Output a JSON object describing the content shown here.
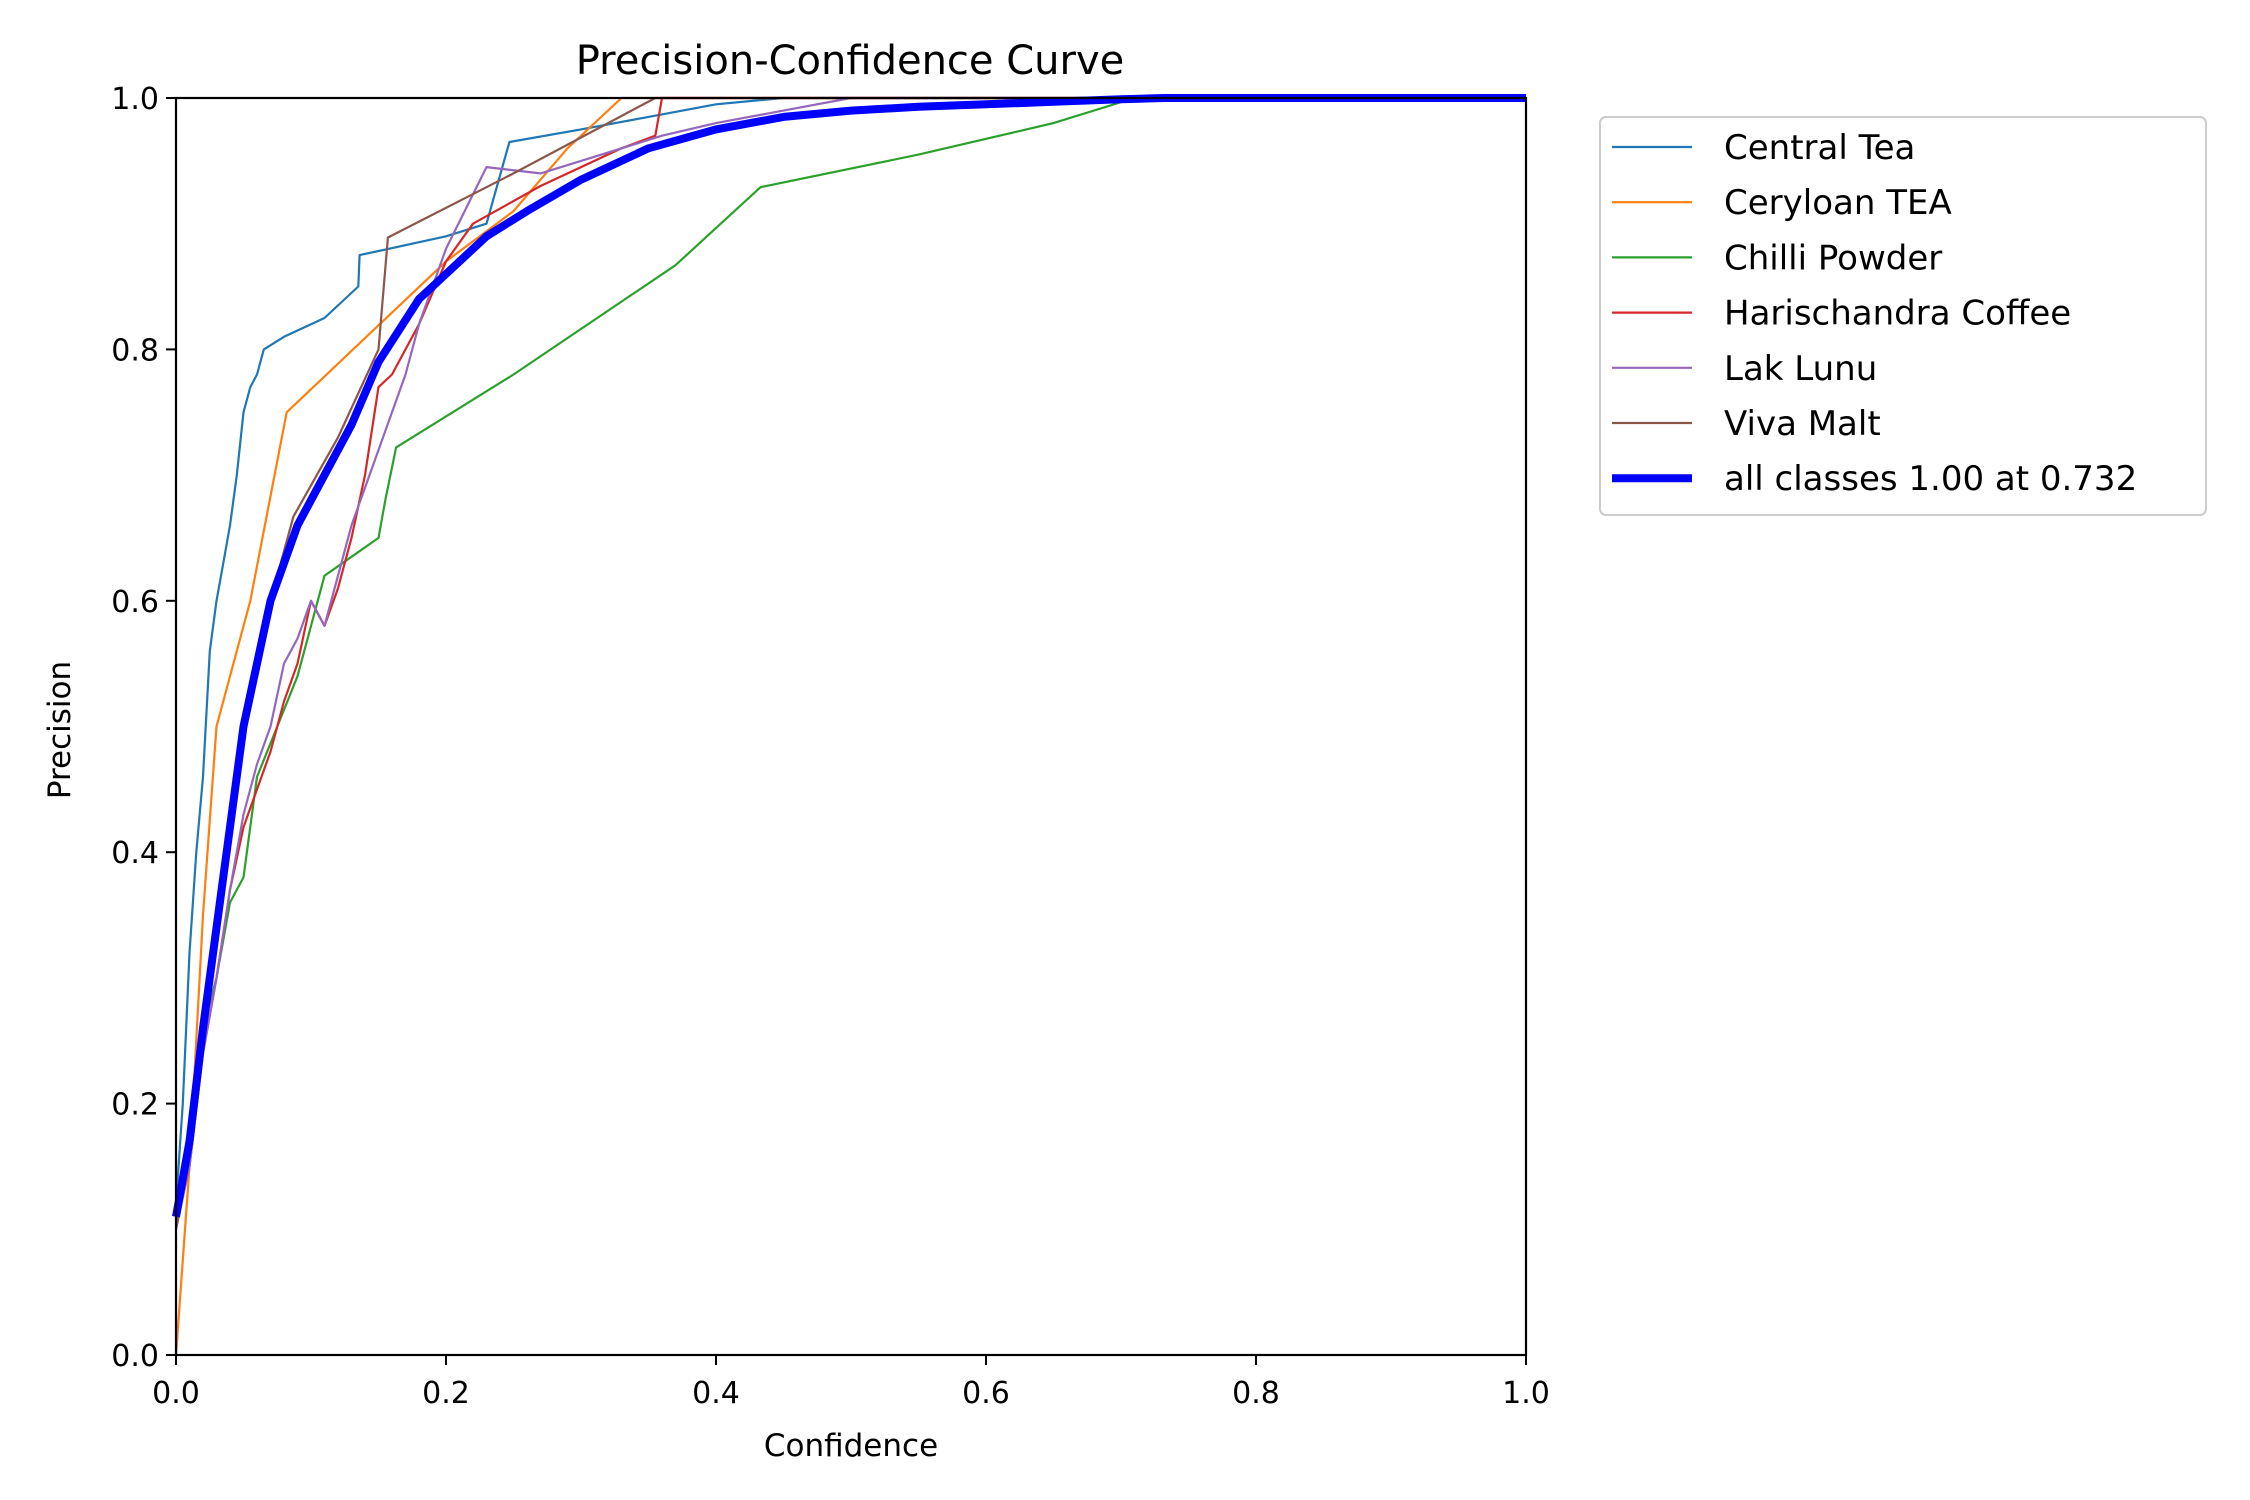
{
  "chart_data": {
    "type": "line",
    "title": "Precision-Confidence Curve",
    "xlabel": "Confidence",
    "ylabel": "Precision",
    "xlim": [
      0,
      1
    ],
    "ylim": [
      0,
      1
    ],
    "xticks": [
      0.0,
      0.2,
      0.4,
      0.6,
      0.8,
      1.0
    ],
    "yticks": [
      0.0,
      0.2,
      0.4,
      0.6,
      0.8,
      1.0
    ],
    "xtick_labels": [
      "0.0",
      "0.2",
      "0.4",
      "0.6",
      "0.8",
      "1.0"
    ],
    "ytick_labels": [
      "0.0",
      "0.2",
      "0.4",
      "0.6",
      "0.8",
      "1.0"
    ],
    "grid": false,
    "legend": "outside-right",
    "series": [
      {
        "name": "Central Tea",
        "color": "#1f77b4",
        "x": [
          0.0,
          0.005,
          0.01,
          0.015,
          0.02,
          0.025,
          0.03,
          0.035,
          0.04,
          0.045,
          0.05,
          0.055,
          0.06,
          0.065,
          0.08,
          0.11,
          0.135,
          0.136,
          0.2,
          0.23,
          0.247,
          0.3,
          0.35,
          0.4,
          0.45,
          1.0
        ],
        "y": [
          0.12,
          0.2,
          0.32,
          0.4,
          0.46,
          0.56,
          0.6,
          0.63,
          0.66,
          0.7,
          0.75,
          0.77,
          0.78,
          0.8,
          0.81,
          0.825,
          0.85,
          0.875,
          0.89,
          0.9,
          0.965,
          0.975,
          0.985,
          0.995,
          1.0,
          1.0
        ]
      },
      {
        "name": "Ceryloan TEA",
        "color": "#ff7f0e",
        "x": [
          0.0,
          0.01,
          0.02,
          0.03,
          0.055,
          0.082,
          0.2,
          0.25,
          0.29,
          0.33,
          0.335,
          1.0
        ],
        "y": [
          0.0,
          0.15,
          0.35,
          0.5,
          0.6,
          0.75,
          0.87,
          0.91,
          0.96,
          1.0,
          1.0,
          1.0
        ]
      },
      {
        "name": "Chilli Powder",
        "color": "#2ca02c",
        "x": [
          0.0,
          0.01,
          0.02,
          0.03,
          0.04,
          0.05,
          0.06,
          0.075,
          0.09,
          0.11,
          0.13,
          0.15,
          0.155,
          0.163,
          0.25,
          0.37,
          0.433,
          0.55,
          0.65,
          0.71,
          1.0
        ],
        "y": [
          0.11,
          0.15,
          0.26,
          0.3,
          0.36,
          0.38,
          0.46,
          0.5,
          0.54,
          0.62,
          0.635,
          0.65,
          0.68,
          0.722,
          0.78,
          0.867,
          0.929,
          0.955,
          0.98,
          1.0,
          1.0
        ]
      },
      {
        "name": "Harischandra Coffee",
        "color": "#d62728",
        "x": [
          0.0,
          0.01,
          0.02,
          0.03,
          0.04,
          0.05,
          0.06,
          0.07,
          0.08,
          0.09,
          0.1,
          0.11,
          0.12,
          0.13,
          0.14,
          0.15,
          0.16,
          0.17,
          0.18,
          0.2,
          0.22,
          0.27,
          0.33,
          0.355,
          0.36,
          1.0
        ],
        "y": [
          0.11,
          0.15,
          0.24,
          0.3,
          0.37,
          0.42,
          0.45,
          0.48,
          0.52,
          0.55,
          0.6,
          0.58,
          0.61,
          0.65,
          0.7,
          0.77,
          0.78,
          0.8,
          0.82,
          0.87,
          0.9,
          0.93,
          0.96,
          0.97,
          1.0,
          1.0
        ]
      },
      {
        "name": "Lak Lunu",
        "color": "#9467bd",
        "x": [
          0.0,
          0.01,
          0.02,
          0.03,
          0.04,
          0.05,
          0.06,
          0.07,
          0.08,
          0.09,
          0.1,
          0.11,
          0.12,
          0.13,
          0.14,
          0.15,
          0.16,
          0.17,
          0.18,
          0.2,
          0.23,
          0.27,
          0.3,
          0.36,
          0.4,
          0.45,
          0.5,
          1.0
        ],
        "y": [
          0.1,
          0.15,
          0.24,
          0.3,
          0.37,
          0.43,
          0.47,
          0.5,
          0.55,
          0.57,
          0.6,
          0.58,
          0.62,
          0.66,
          0.69,
          0.72,
          0.75,
          0.78,
          0.82,
          0.88,
          0.945,
          0.94,
          0.95,
          0.97,
          0.98,
          0.99,
          1.0,
          1.0
        ]
      },
      {
        "name": "Viva Malt",
        "color": "#8c564b",
        "x": [
          0.0,
          0.01,
          0.02,
          0.03,
          0.05,
          0.07,
          0.087,
          0.12,
          0.15,
          0.157,
          0.25,
          0.355,
          1.0
        ],
        "y": [
          0.1,
          0.16,
          0.26,
          0.35,
          0.5,
          0.6,
          0.667,
          0.73,
          0.8,
          0.889,
          0.94,
          1.0,
          1.0
        ]
      },
      {
        "name": "all classes 1.00 at 0.732",
        "color": "#0000ff",
        "thick": true,
        "x": [
          0.0,
          0.01,
          0.02,
          0.03,
          0.04,
          0.05,
          0.06,
          0.07,
          0.08,
          0.09,
          0.1,
          0.12,
          0.13,
          0.15,
          0.18,
          0.2,
          0.23,
          0.26,
          0.3,
          0.35,
          0.4,
          0.45,
          0.5,
          0.55,
          0.6,
          0.65,
          0.7,
          0.732,
          1.0
        ],
        "y": [
          0.11,
          0.17,
          0.26,
          0.34,
          0.42,
          0.5,
          0.55,
          0.6,
          0.63,
          0.66,
          0.68,
          0.72,
          0.74,
          0.79,
          0.84,
          0.86,
          0.89,
          0.91,
          0.935,
          0.96,
          0.975,
          0.985,
          0.99,
          0.993,
          0.995,
          0.997,
          0.999,
          1.0,
          1.0
        ]
      }
    ]
  }
}
